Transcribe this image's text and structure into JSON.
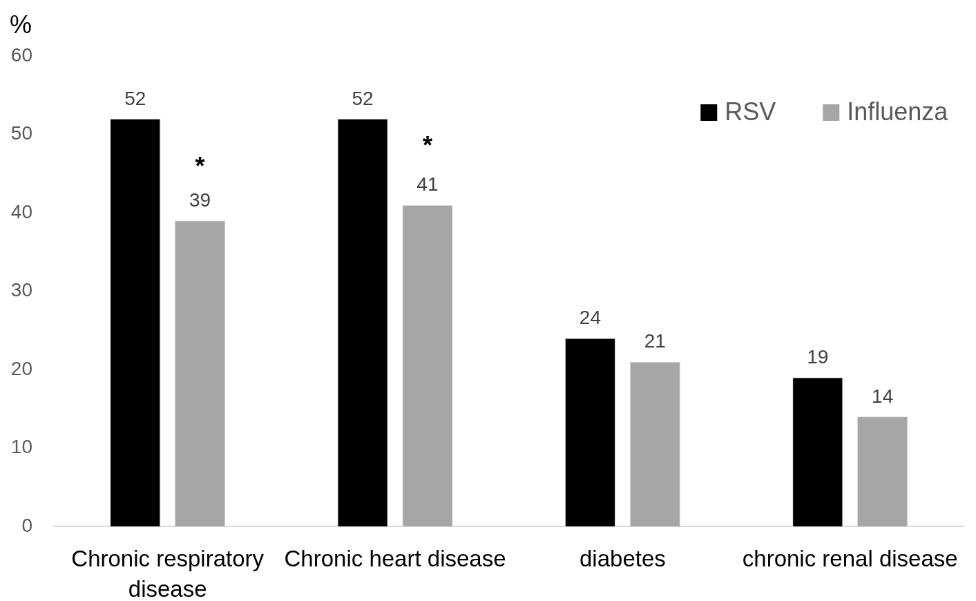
{
  "chart_data": {
    "type": "bar",
    "ylabel": "%",
    "categories": [
      "Chronic respiratory disease",
      "Chronic heart disease",
      "diabetes",
      "chronic renal disease"
    ],
    "series": [
      {
        "name": "RSV",
        "color": "#000000",
        "values": [
          52,
          52,
          24,
          19
        ]
      },
      {
        "name": "Influenza",
        "color": "#a6a6a6",
        "values": [
          39,
          41,
          21,
          14
        ]
      }
    ],
    "ylim": [
      0,
      60
    ],
    "yticks": [
      0,
      10,
      20,
      30,
      40,
      50,
      60
    ],
    "grid": false,
    "legend": "top right",
    "data_labels": true,
    "annotations": [
      "*",
      "*"
    ]
  }
}
